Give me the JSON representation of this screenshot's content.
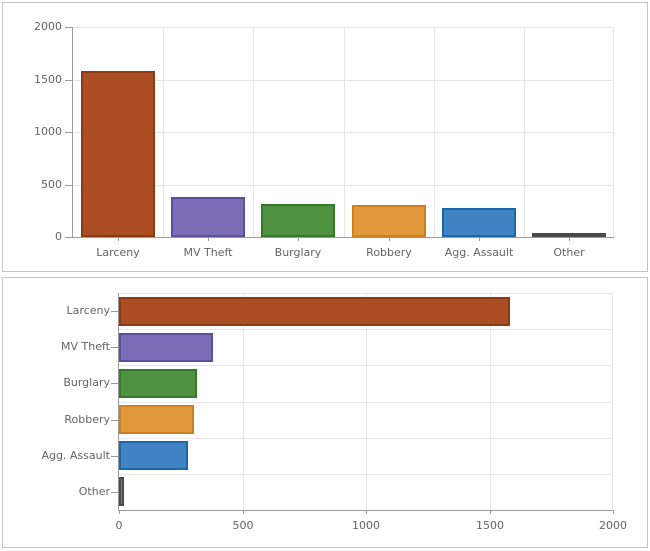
{
  "window": {
    "background": "#ffffff",
    "panel_border": "#c3c3c3"
  },
  "axis_style": {
    "line_color": "#9a9a9a",
    "grid_color": "#e6e6e6",
    "text_color": "#646464"
  },
  "palette": [
    {
      "name": "rust",
      "fill": "#AC4E24",
      "stroke": "#8B3A17"
    },
    {
      "name": "purple",
      "fill": "#7C6BB5",
      "stroke": "#5D4FA0"
    },
    {
      "name": "green",
      "fill": "#4E9140",
      "stroke": "#357A28"
    },
    {
      "name": "orange",
      "fill": "#E2993B",
      "stroke": "#D07F1E"
    },
    {
      "name": "blue",
      "fill": "#4184C4",
      "stroke": "#1C66AE"
    },
    {
      "name": "gray",
      "fill": "#808080",
      "stroke": "#4A4A4A"
    }
  ],
  "chart_data": [
    {
      "type": "bar",
      "orientation": "vertical",
      "title": "",
      "xlabel": "",
      "ylabel": "",
      "categories": [
        "Larceny",
        "MV Theft",
        "Burglary",
        "Robbery",
        "Agg. Assault",
        "Other"
      ],
      "values": [
        1585,
        380,
        315,
        305,
        280,
        20
      ],
      "ylim": [
        0,
        2000
      ],
      "yticks": [
        0,
        500,
        1000,
        1500,
        2000
      ],
      "grid": true,
      "legend": false
    },
    {
      "type": "bar",
      "orientation": "horizontal",
      "title": "",
      "xlabel": "",
      "ylabel": "",
      "categories": [
        "Larceny",
        "MV Theft",
        "Burglary",
        "Robbery",
        "Agg. Assault",
        "Other"
      ],
      "values": [
        1585,
        380,
        315,
        305,
        280,
        20
      ],
      "xlim": [
        0,
        2000
      ],
      "xticks": [
        0,
        500,
        1000,
        1500,
        2000
      ],
      "grid": true,
      "legend": false
    }
  ]
}
